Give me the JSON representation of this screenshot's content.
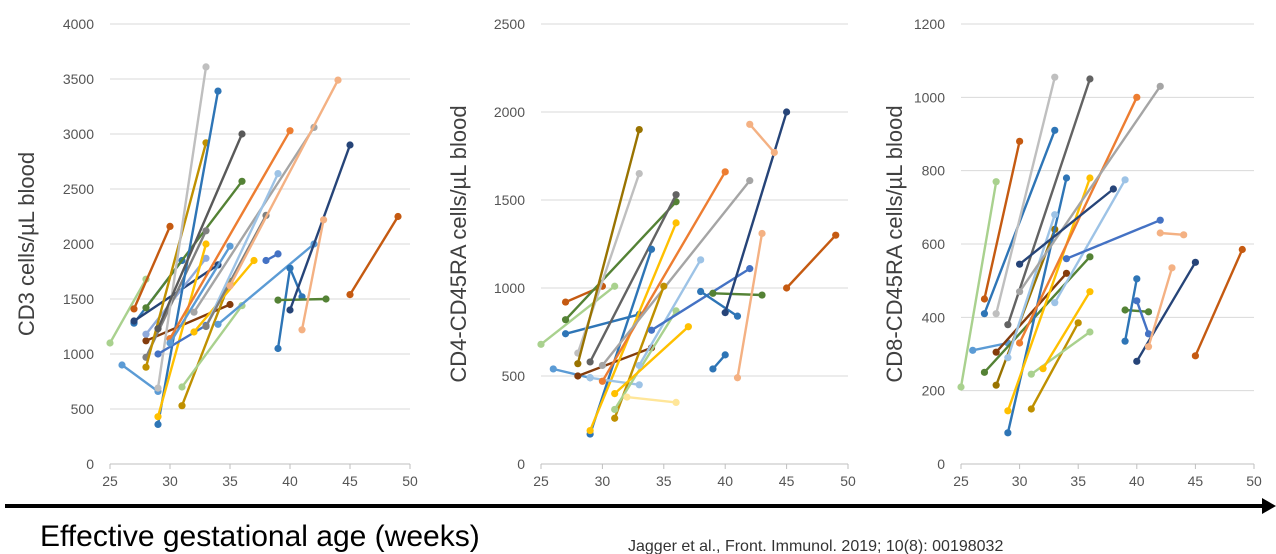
{
  "x_axis_label": "Effective gestational age (weeks)",
  "citation": "Jagger et al., Front. Immunol. 2019; 10(8): 00198032",
  "colors": {
    "palette": [
      "#5b9bd5",
      "#ed7d31",
      "#a5a5a5",
      "#ffc000",
      "#4472c4",
      "#70ad47",
      "#264478",
      "#9e480e",
      "#636363",
      "#997300",
      "#255e91",
      "#43682b",
      "#9dc3e6",
      "#f4b183",
      "#c00000",
      "#8fbc5a",
      "#1f4e79",
      "#c55a11",
      "#7f7f7f",
      "#f1c232"
    ]
  },
  "chart_data": [
    {
      "type": "line",
      "ylabel": "CD3 cells/µL blood",
      "xlim": [
        25,
        50
      ],
      "ylim": [
        0,
        4000
      ],
      "xticks": [
        25,
        30,
        35,
        40,
        45,
        50
      ],
      "yticks": [
        0,
        500,
        1000,
        1500,
        2000,
        2500,
        3000,
        3500,
        4000
      ],
      "grid": true,
      "series": [
        {
          "x": [
            25,
            28
          ],
          "y": [
            1100,
            1680
          ],
          "color": "#a9d18e"
        },
        {
          "x": [
            26,
            29
          ],
          "y": [
            900,
            660
          ],
          "color": "#5b9bd5"
        },
        {
          "x": [
            27,
            30
          ],
          "y": [
            1410,
            2160
          ],
          "color": "#c55a11"
        },
        {
          "x": [
            27,
            31
          ],
          "y": [
            1280,
            1850
          ],
          "color": "#2e75b6"
        },
        {
          "x": [
            27,
            34
          ],
          "y": [
            1300,
            1810
          ],
          "color": "#264478"
        },
        {
          "x": [
            28,
            35
          ],
          "y": [
            1120,
            1450
          ],
          "color": "#843c0c"
        },
        {
          "x": [
            28,
            36
          ],
          "y": [
            1420,
            2570
          ],
          "color": "#548235"
        },
        {
          "x": [
            28,
            33
          ],
          "y": [
            1180,
            1870
          ],
          "color": "#8faadc"
        },
        {
          "x": [
            28,
            33
          ],
          "y": [
            970,
            2120
          ],
          "color": "#7f7f7f"
        },
        {
          "x": [
            28,
            33
          ],
          "y": [
            880,
            2920
          ],
          "color": "#bf9000"
        },
        {
          "x": [
            29,
            33
          ],
          "y": [
            690,
            3610
          ],
          "color": "#bfbfbf"
        },
        {
          "x": [
            29,
            34
          ],
          "y": [
            360,
            3390
          ],
          "color": "#2e75b6"
        },
        {
          "x": [
            29,
            33
          ],
          "y": [
            430,
            2000
          ],
          "color": "#ffc000"
        },
        {
          "x": [
            29,
            36
          ],
          "y": [
            1230,
            3000
          ],
          "color": "#595959"
        },
        {
          "x": [
            29,
            33
          ],
          "y": [
            1000,
            1260
          ],
          "color": "#4472c4"
        },
        {
          "x": [
            30,
            40
          ],
          "y": [
            1140,
            3030
          ],
          "color": "#ed7d31"
        },
        {
          "x": [
            30,
            35
          ],
          "y": [
            1100,
            1980
          ],
          "color": "#5b9bd5"
        },
        {
          "x": [
            31,
            35
          ],
          "y": [
            530,
            1660
          ],
          "color": "#bf9000"
        },
        {
          "x": [
            31,
            36
          ],
          "y": [
            700,
            1440
          ],
          "color": "#a9d18e"
        },
        {
          "x": [
            32,
            42
          ],
          "y": [
            1380,
            3060
          ],
          "color": "#a5a5a5"
        },
        {
          "x": [
            32,
            37
          ],
          "y": [
            1200,
            1850
          ],
          "color": "#ffc000"
        },
        {
          "x": [
            33,
            39
          ],
          "y": [
            1250,
            2640
          ],
          "color": "#9dc3e6"
        },
        {
          "x": [
            33,
            38
          ],
          "y": [
            1250,
            2260
          ],
          "color": "#7f7f7f"
        },
        {
          "x": [
            34,
            42
          ],
          "y": [
            1270,
            2000
          ],
          "color": "#5b9bd5"
        },
        {
          "x": [
            35,
            44
          ],
          "y": [
            1620,
            3490
          ],
          "color": "#f4b183"
        },
        {
          "x": [
            38,
            39
          ],
          "y": [
            1850,
            1910
          ],
          "color": "#4472c4"
        },
        {
          "x": [
            39,
            40,
            41
          ],
          "y": [
            1050,
            1780,
            1520
          ],
          "color": "#2e75b6"
        },
        {
          "x": [
            39,
            43
          ],
          "y": [
            1490,
            1500
          ],
          "color": "#548235"
        },
        {
          "x": [
            40,
            45
          ],
          "y": [
            1400,
            2900
          ],
          "color": "#264478"
        },
        {
          "x": [
            41,
            42.8
          ],
          "y": [
            1220,
            2220
          ],
          "color": "#f4b183"
        },
        {
          "x": [
            45,
            49
          ],
          "y": [
            1540,
            2250
          ],
          "color": "#c55a11"
        }
      ]
    },
    {
      "type": "line",
      "ylabel": "CD4-CD45RA cells/µL blood",
      "xlim": [
        25,
        50
      ],
      "ylim": [
        0,
        2500
      ],
      "xticks": [
        25,
        30,
        35,
        40,
        45,
        50
      ],
      "yticks": [
        0,
        500,
        1000,
        1500,
        2000,
        2500
      ],
      "grid": true,
      "series": [
        {
          "x": [
            25,
            31
          ],
          "y": [
            680,
            1010
          ],
          "color": "#a9d18e"
        },
        {
          "x": [
            26,
            29
          ],
          "y": [
            540,
            490
          ],
          "color": "#5b9bd5"
        },
        {
          "x": [
            27,
            30
          ],
          "y": [
            920,
            1010
          ],
          "color": "#c55a11"
        },
        {
          "x": [
            27,
            33
          ],
          "y": [
            740,
            850
          ],
          "color": "#2e75b6"
        },
        {
          "x": [
            27,
            36
          ],
          "y": [
            820,
            1490
          ],
          "color": "#548235"
        },
        {
          "x": [
            28,
            34
          ],
          "y": [
            500,
            660
          ],
          "color": "#843c0c"
        },
        {
          "x": [
            28,
            33
          ],
          "y": [
            630,
            1650
          ],
          "color": "#bfbfbf"
        },
        {
          "x": [
            28,
            33
          ],
          "y": [
            570,
            1900
          ],
          "color": "#997300"
        },
        {
          "x": [
            29,
            36
          ],
          "y": [
            580,
            1530
          ],
          "color": "#636363"
        },
        {
          "x": [
            29,
            34
          ],
          "y": [
            170,
            1220
          ],
          "color": "#2e75b6"
        },
        {
          "x": [
            29,
            36
          ],
          "y": [
            190,
            1370
          ],
          "color": "#ffc000"
        },
        {
          "x": [
            29,
            33
          ],
          "y": [
            490,
            450
          ],
          "color": "#9dc3e6"
        },
        {
          "x": [
            30,
            40
          ],
          "y": [
            470,
            1660
          ],
          "color": "#ed7d31"
        },
        {
          "x": [
            30,
            42
          ],
          "y": [
            560,
            1610
          ],
          "color": "#a5a5a5"
        },
        {
          "x": [
            31,
            35
          ],
          "y": [
            260,
            1010
          ],
          "color": "#bf9000"
        },
        {
          "x": [
            31,
            36
          ],
          "y": [
            310,
            870
          ],
          "color": "#a9d18e"
        },
        {
          "x": [
            31,
            37
          ],
          "y": [
            400,
            780
          ],
          "color": "#ffc000"
        },
        {
          "x": [
            32,
            36
          ],
          "y": [
            380,
            350
          ],
          "color": "#ffe699"
        },
        {
          "x": [
            33,
            38
          ],
          "y": [
            560,
            1160
          ],
          "color": "#9dc3e6"
        },
        {
          "x": [
            34,
            42
          ],
          "y": [
            760,
            1110
          ],
          "color": "#4472c4"
        },
        {
          "x": [
            38,
            41
          ],
          "y": [
            980,
            840
          ],
          "color": "#2e75b6"
        },
        {
          "x": [
            39,
            40
          ],
          "y": [
            540,
            620
          ],
          "color": "#2e75b6"
        },
        {
          "x": [
            39,
            43
          ],
          "y": [
            970,
            960
          ],
          "color": "#548235"
        },
        {
          "x": [
            40,
            45
          ],
          "y": [
            860,
            2000
          ],
          "color": "#264478"
        },
        {
          "x": [
            41,
            43
          ],
          "y": [
            490,
            1310
          ],
          "color": "#f4b183"
        },
        {
          "x": [
            42,
            44
          ],
          "y": [
            1930,
            1770
          ],
          "color": "#f4b183"
        },
        {
          "x": [
            45,
            49
          ],
          "y": [
            1000,
            1300
          ],
          "color": "#c55a11"
        }
      ]
    },
    {
      "type": "line",
      "ylabel": "CD8-CD45RA cells/µL blood",
      "xlim": [
        25,
        50
      ],
      "ylim": [
        0,
        1200
      ],
      "xticks": [
        25,
        30,
        35,
        40,
        45,
        50
      ],
      "yticks": [
        0,
        200,
        400,
        600,
        800,
        1000,
        1200
      ],
      "grid": true,
      "series": [
        {
          "x": [
            25,
            28
          ],
          "y": [
            210,
            770
          ],
          "color": "#a9d18e"
        },
        {
          "x": [
            26,
            29
          ],
          "y": [
            310,
            330
          ],
          "color": "#5b9bd5"
        },
        {
          "x": [
            27,
            30
          ],
          "y": [
            450,
            880
          ],
          "color": "#c55a11"
        },
        {
          "x": [
            27,
            33
          ],
          "y": [
            410,
            910
          ],
          "color": "#2e75b6"
        },
        {
          "x": [
            27,
            36
          ],
          "y": [
            250,
            565
          ],
          "color": "#548235"
        },
        {
          "x": [
            28,
            34
          ],
          "y": [
            305,
            520
          ],
          "color": "#843c0c"
        },
        {
          "x": [
            28,
            33
          ],
          "y": [
            410,
            1055
          ],
          "color": "#bfbfbf"
        },
        {
          "x": [
            28,
            33
          ],
          "y": [
            215,
            640
          ],
          "color": "#997300"
        },
        {
          "x": [
            29,
            36
          ],
          "y": [
            380,
            1050
          ],
          "color": "#636363"
        },
        {
          "x": [
            29,
            34
          ],
          "y": [
            85,
            780
          ],
          "color": "#2e75b6"
        },
        {
          "x": [
            29,
            36
          ],
          "y": [
            145,
            780
          ],
          "color": "#ffc000"
        },
        {
          "x": [
            29,
            33
          ],
          "y": [
            290,
            680
          ],
          "color": "#9dc3e6"
        },
        {
          "x": [
            30,
            40
          ],
          "y": [
            330,
            1000
          ],
          "color": "#ed7d31"
        },
        {
          "x": [
            30,
            42
          ],
          "y": [
            470,
            1030
          ],
          "color": "#a5a5a5"
        },
        {
          "x": [
            30,
            38
          ],
          "y": [
            545,
            750
          ],
          "color": "#264478"
        },
        {
          "x": [
            31,
            35
          ],
          "y": [
            150,
            385
          ],
          "color": "#bf9000"
        },
        {
          "x": [
            31,
            36
          ],
          "y": [
            245,
            360
          ],
          "color": "#a9d18e"
        },
        {
          "x": [
            32,
            36
          ],
          "y": [
            260,
            470
          ],
          "color": "#ffc000"
        },
        {
          "x": [
            33,
            39
          ],
          "y": [
            440,
            775
          ],
          "color": "#9dc3e6"
        },
        {
          "x": [
            34,
            42
          ],
          "y": [
            560,
            665
          ],
          "color": "#4472c4"
        },
        {
          "x": [
            39,
            41
          ],
          "y": [
            420,
            415
          ],
          "color": "#548235"
        },
        {
          "x": [
            39,
            40
          ],
          "y": [
            335,
            505
          ],
          "color": "#2e75b6"
        },
        {
          "x": [
            40,
            41
          ],
          "y": [
            445,
            355
          ],
          "color": "#4472c4"
        },
        {
          "x": [
            40,
            45
          ],
          "y": [
            280,
            550
          ],
          "color": "#264478"
        },
        {
          "x": [
            41,
            43
          ],
          "y": [
            320,
            535
          ],
          "color": "#f4b183"
        },
        {
          "x": [
            42,
            44
          ],
          "y": [
            630,
            625
          ],
          "color": "#f4b183"
        },
        {
          "x": [
            45,
            49
          ],
          "y": [
            295,
            585
          ],
          "color": "#c55a11"
        }
      ]
    }
  ]
}
